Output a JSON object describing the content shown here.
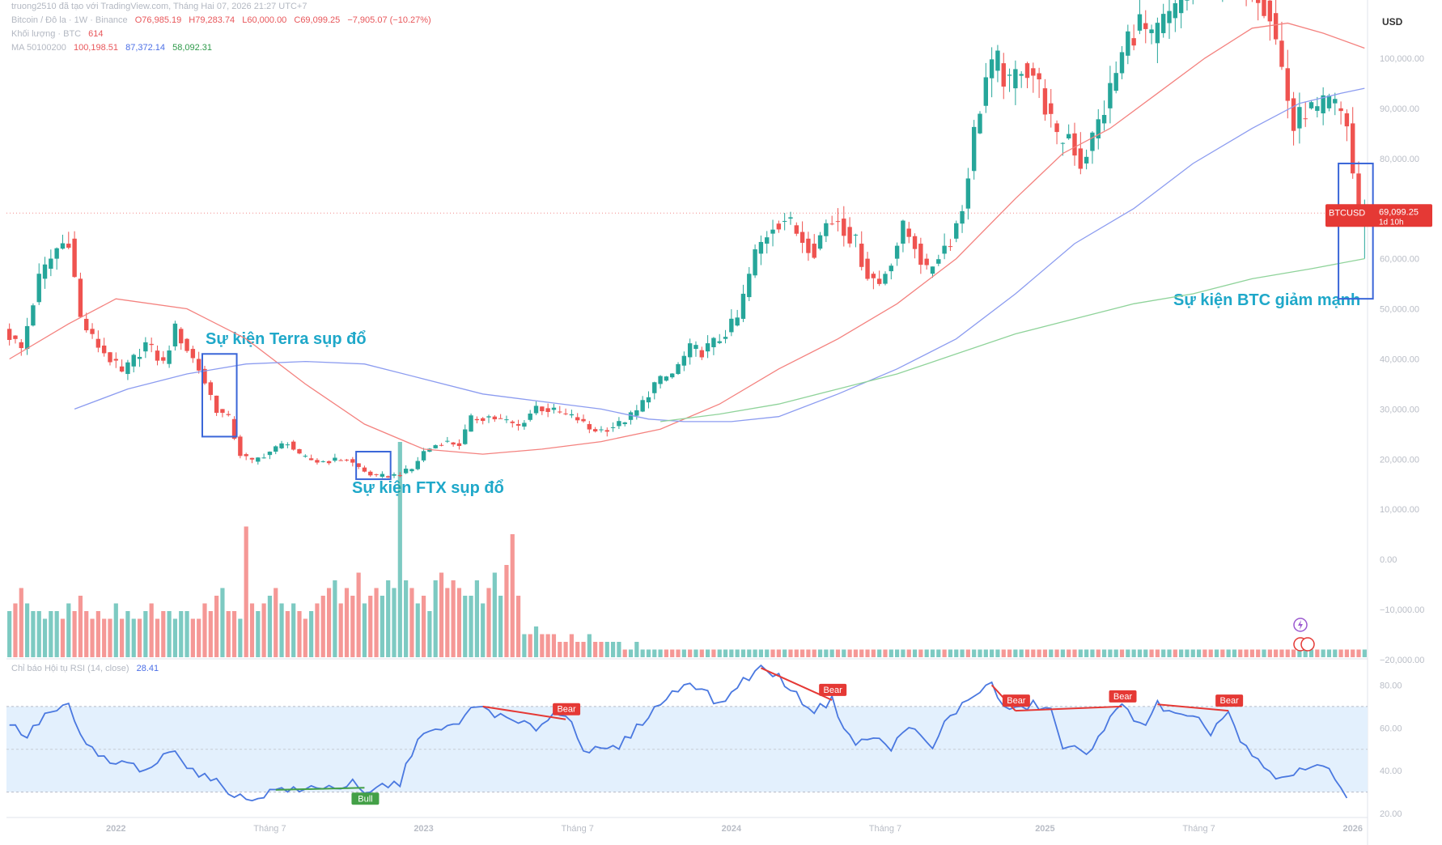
{
  "header": {
    "watermark": "truong2510 đã tạo với TradingView.com, Tháng Hai 07, 2026 21:27 UTC+7",
    "symbol": "Bitcoin / Đô la · 1W · Binance",
    "open": "O76,985.19",
    "high": "H79,283.74",
    "low": "L60,000.00",
    "close": "C69,099.25",
    "change": "−7,905.07 (−10.27%)",
    "volume_label": "Khối lượng · BTC",
    "volume_value": "614",
    "ma_label": "MA 50100200",
    "ma50": "100,198.51",
    "ma100": "87,372.14",
    "ma200": "58,092.31",
    "rsi_label": "Chỉ báo Hội tụ RSI (14, close)",
    "rsi_value": "28.41"
  },
  "currency": "USD",
  "price_tag": {
    "symbol": "BTCUSD",
    "price": "69,099.25",
    "countdown": "1d 10h"
  },
  "annotations": {
    "terra": "Sự kiện Terra sụp đổ",
    "ftx": "Sự kiện FTX sụp đổ",
    "btc_drop": "Sự kiện BTC giảm mạnh"
  },
  "colors": {
    "up": "#26a69a",
    "down": "#ef5350",
    "ma50": "#f4827f",
    "ma100": "#8c9cf0",
    "ma200": "#8fd39a",
    "rsi": "#4a78e0",
    "rsi_band": "#e3f0fd",
    "box": "#3a66d8",
    "annotation": "#1fa8c9",
    "bear_tag": "#e53935",
    "bull_tag": "#43a047"
  },
  "chart_data": {
    "type": "candlestick",
    "price_axis": {
      "min": -20000,
      "max": 110000,
      "ticks": [
        "100,000.00",
        "90,000.00",
        "80,000.00",
        "70,000.00",
        "60,000.00",
        "50,000.00",
        "40,000.00",
        "30,000.00",
        "20,000.00",
        "10,000.00",
        "0.00",
        "−10,000.00",
        "−20,000.00"
      ],
      "tick_values": [
        100000,
        90000,
        80000,
        70000,
        60000,
        50000,
        40000,
        30000,
        20000,
        10000,
        0,
        -10000,
        -20000
      ]
    },
    "rsi_axis": {
      "min": 20,
      "max": 90,
      "ticks": [
        "80.00",
        "60.00",
        "40.00",
        "20.00"
      ],
      "tick_values": [
        80,
        60,
        40,
        20
      ],
      "band": [
        30,
        70
      ],
      "midline": 50
    },
    "time_axis": {
      "labels": [
        "2022",
        "Tháng 7",
        "2023",
        "Tháng 7",
        "2024",
        "Tháng 7",
        "2025",
        "Tháng 7",
        "2026"
      ],
      "weeks": [
        18,
        44,
        70,
        96,
        122,
        148,
        175,
        201,
        227
      ]
    },
    "price_path": [
      [
        0,
        46000
      ],
      [
        3,
        42000
      ],
      [
        6,
        56000
      ],
      [
        9,
        62000
      ],
      [
        11,
        64000
      ],
      [
        13,
        48000
      ],
      [
        15,
        44000
      ],
      [
        18,
        40000
      ],
      [
        20,
        37000
      ],
      [
        24,
        43000
      ],
      [
        27,
        39000
      ],
      [
        29,
        46000
      ],
      [
        31,
        42000
      ],
      [
        33,
        38000
      ],
      [
        36,
        30000
      ],
      [
        38,
        28000
      ],
      [
        40,
        21000
      ],
      [
        42,
        19500
      ],
      [
        45,
        21500
      ],
      [
        48,
        23500
      ],
      [
        50,
        20500
      ],
      [
        53,
        19500
      ],
      [
        56,
        19800
      ],
      [
        58,
        20000
      ],
      [
        61,
        17500
      ],
      [
        63,
        16500
      ],
      [
        66,
        16800
      ],
      [
        69,
        18000
      ],
      [
        71,
        21500
      ],
      [
        74,
        23500
      ],
      [
        77,
        23000
      ],
      [
        79,
        28000
      ],
      [
        82,
        28500
      ],
      [
        85,
        27500
      ],
      [
        87,
        26500
      ],
      [
        90,
        30500
      ],
      [
        93,
        29500
      ],
      [
        97,
        28000
      ],
      [
        99,
        26000
      ],
      [
        101,
        25800
      ],
      [
        104,
        27000
      ],
      [
        107,
        29500
      ],
      [
        110,
        35000
      ],
      [
        113,
        37000
      ],
      [
        116,
        42000
      ],
      [
        118,
        41500
      ],
      [
        121,
        44000
      ],
      [
        124,
        48000
      ],
      [
        127,
        61000
      ],
      [
        130,
        67000
      ],
      [
        132,
        68000
      ],
      [
        135,
        64000
      ],
      [
        137,
        62000
      ],
      [
        139,
        67000
      ],
      [
        141,
        68000
      ],
      [
        144,
        63000
      ],
      [
        146,
        57000
      ],
      [
        148,
        55000
      ],
      [
        150,
        60000
      ],
      [
        152,
        66000
      ],
      [
        154,
        63000
      ],
      [
        156,
        57000
      ],
      [
        158,
        61000
      ],
      [
        160,
        64000
      ],
      [
        162,
        70000
      ],
      [
        164,
        85000
      ],
      [
        166,
        96000
      ],
      [
        168,
        99000
      ],
      [
        170,
        94000
      ],
      [
        172,
        99000
      ],
      [
        174,
        97000
      ],
      [
        176,
        91000
      ],
      [
        178,
        83000
      ],
      [
        180,
        85000
      ],
      [
        182,
        79000
      ],
      [
        184,
        84000
      ],
      [
        186,
        90000
      ],
      [
        188,
        97000
      ],
      [
        190,
        104000
      ],
      [
        192,
        107000
      ],
      [
        194,
        103000
      ],
      [
        196,
        107000
      ],
      [
        198,
        109000
      ],
      [
        200,
        114000
      ],
      [
        202,
        117000
      ],
      [
        204,
        112000
      ],
      [
        206,
        118000
      ],
      [
        208,
        122000
      ],
      [
        210,
        117000
      ],
      [
        212,
        114000
      ],
      [
        214,
        109000
      ],
      [
        216,
        98000
      ],
      [
        218,
        86000
      ],
      [
        220,
        90000
      ],
      [
        222,
        89000
      ],
      [
        224,
        91000
      ],
      [
        226,
        89000
      ],
      [
        227,
        87000
      ],
      [
        228,
        77000
      ],
      [
        229,
        69099
      ]
    ],
    "ma_series": [
      {
        "name": "MA 50",
        "points": [
          [
            0,
            40000
          ],
          [
            10,
            47000
          ],
          [
            18,
            52000
          ],
          [
            30,
            50000
          ],
          [
            40,
            44000
          ],
          [
            50,
            35000
          ],
          [
            60,
            27000
          ],
          [
            70,
            22000
          ],
          [
            80,
            21000
          ],
          [
            90,
            22000
          ],
          [
            100,
            23500
          ],
          [
            110,
            26000
          ],
          [
            120,
            31000
          ],
          [
            130,
            38000
          ],
          [
            140,
            44000
          ],
          [
            150,
            51000
          ],
          [
            160,
            60000
          ],
          [
            170,
            72000
          ],
          [
            178,
            81000
          ],
          [
            186,
            86000
          ],
          [
            194,
            93000
          ],
          [
            202,
            100000
          ],
          [
            210,
            106000
          ],
          [
            216,
            107000
          ],
          [
            222,
            105000
          ],
          [
            229,
            102000
          ]
        ]
      },
      {
        "name": "MA 100",
        "points": [
          [
            11,
            30000
          ],
          [
            20,
            34000
          ],
          [
            30,
            37000
          ],
          [
            40,
            39000
          ],
          [
            50,
            39500
          ],
          [
            60,
            39000
          ],
          [
            70,
            36000
          ],
          [
            80,
            33000
          ],
          [
            90,
            31500
          ],
          [
            100,
            30000
          ],
          [
            108,
            28000
          ],
          [
            114,
            27500
          ],
          [
            122,
            27500
          ],
          [
            130,
            28500
          ],
          [
            140,
            33000
          ],
          [
            150,
            38000
          ],
          [
            160,
            44000
          ],
          [
            170,
            53000
          ],
          [
            180,
            63000
          ],
          [
            190,
            70000
          ],
          [
            200,
            79000
          ],
          [
            210,
            86000
          ],
          [
            218,
            91000
          ],
          [
            225,
            93000
          ],
          [
            229,
            94000
          ]
        ]
      },
      {
        "name": "MA 200",
        "points": [
          [
            110,
            27500
          ],
          [
            120,
            29000
          ],
          [
            130,
            31000
          ],
          [
            140,
            34000
          ],
          [
            150,
            37000
          ],
          [
            160,
            41000
          ],
          [
            170,
            45000
          ],
          [
            180,
            48000
          ],
          [
            190,
            51000
          ],
          [
            200,
            53000
          ],
          [
            210,
            56000
          ],
          [
            220,
            58000
          ],
          [
            229,
            60000
          ]
        ]
      }
    ],
    "volume_bars": [
      6,
      7,
      9,
      7,
      6,
      6,
      5,
      6,
      6,
      5,
      7,
      6,
      8,
      6,
      5,
      6,
      5,
      5,
      7,
      5,
      6,
      5,
      5,
      6,
      7,
      5,
      6,
      6,
      5,
      6,
      6,
      5,
      5,
      7,
      6,
      8,
      9,
      6,
      6,
      5,
      17,
      7,
      6,
      7,
      8,
      9,
      7,
      6,
      7,
      6,
      5,
      6,
      7,
      8,
      9,
      10,
      7,
      9,
      8,
      11,
      7,
      8,
      9,
      8,
      10,
      9,
      28,
      10,
      9,
      7,
      8,
      6,
      10,
      11,
      9,
      10,
      9,
      8,
      8,
      10,
      7,
      9,
      11,
      8,
      12,
      16,
      8,
      3,
      3,
      4,
      3,
      3,
      3,
      2,
      2,
      3,
      2,
      2,
      3,
      2,
      2,
      2,
      2,
      2,
      1,
      1,
      2,
      1,
      1,
      1,
      1,
      1,
      1,
      1,
      1,
      1,
      1,
      1,
      1,
      1,
      1,
      1,
      1,
      1,
      1,
      1,
      1,
      1,
      1,
      1,
      1,
      1,
      1,
      1,
      1,
      1,
      1,
      1,
      1,
      1,
      1,
      1,
      1,
      1,
      1,
      1,
      1,
      1,
      1,
      1,
      1,
      1,
      1,
      1,
      1,
      1,
      1,
      1,
      1,
      1,
      1,
      1,
      1,
      1,
      1,
      1,
      1,
      1,
      1,
      1,
      1,
      1,
      1,
      1,
      1,
      1,
      1,
      1,
      1,
      1,
      1,
      1,
      1,
      1,
      1,
      1,
      1,
      1,
      1,
      1,
      1,
      1,
      1,
      1,
      1,
      1,
      1,
      1,
      1,
      1,
      1,
      1,
      1,
      1,
      1,
      1,
      1,
      1,
      1,
      1,
      1,
      1,
      1,
      1,
      1,
      1,
      1,
      1,
      1,
      1,
      1,
      1,
      1,
      1,
      1,
      1,
      1,
      1,
      1,
      1
    ],
    "rsi_path": [
      [
        0,
        62
      ],
      [
        3,
        56
      ],
      [
        6,
        66
      ],
      [
        10,
        70
      ],
      [
        12,
        56
      ],
      [
        15,
        47
      ],
      [
        18,
        42
      ],
      [
        20,
        45
      ],
      [
        22,
        38
      ],
      [
        25,
        44
      ],
      [
        28,
        51
      ],
      [
        30,
        42
      ],
      [
        33,
        37
      ],
      [
        36,
        33
      ],
      [
        38,
        29
      ],
      [
        40,
        26
      ],
      [
        43,
        29
      ],
      [
        46,
        32
      ],
      [
        49,
        30
      ],
      [
        52,
        33
      ],
      [
        55,
        32
      ],
      [
        58,
        34
      ],
      [
        60,
        28
      ],
      [
        63,
        33
      ],
      [
        66,
        34
      ],
      [
        69,
        56
      ],
      [
        72,
        58
      ],
      [
        75,
        61
      ],
      [
        78,
        68
      ],
      [
        80,
        70
      ],
      [
        83,
        65
      ],
      [
        86,
        62
      ],
      [
        89,
        60
      ],
      [
        92,
        67
      ],
      [
        95,
        64
      ],
      [
        97,
        50
      ],
      [
        100,
        49
      ],
      [
        103,
        51
      ],
      [
        106,
        60
      ],
      [
        109,
        69
      ],
      [
        112,
        76
      ],
      [
        115,
        82
      ],
      [
        118,
        76
      ],
      [
        120,
        70
      ],
      [
        123,
        80
      ],
      [
        127,
        88
      ],
      [
        130,
        84
      ],
      [
        133,
        75
      ],
      [
        136,
        68
      ],
      [
        139,
        73
      ],
      [
        141,
        61
      ],
      [
        143,
        52
      ],
      [
        146,
        56
      ],
      [
        149,
        50
      ],
      [
        152,
        62
      ],
      [
        154,
        55
      ],
      [
        156,
        50
      ],
      [
        158,
        62
      ],
      [
        160,
        68
      ],
      [
        162,
        73
      ],
      [
        164,
        78
      ],
      [
        166,
        80
      ],
      [
        168,
        70
      ],
      [
        170,
        68
      ],
      [
        173,
        71
      ],
      [
        176,
        68
      ],
      [
        178,
        51
      ],
      [
        180,
        50
      ],
      [
        182,
        47
      ],
      [
        184,
        57
      ],
      [
        186,
        64
      ],
      [
        188,
        70
      ],
      [
        190,
        65
      ],
      [
        192,
        62
      ],
      [
        194,
        71
      ],
      [
        196,
        67
      ],
      [
        198,
        65
      ],
      [
        201,
        63
      ],
      [
        203,
        58
      ],
      [
        206,
        68
      ],
      [
        208,
        53
      ],
      [
        211,
        44
      ],
      [
        213,
        38
      ],
      [
        215,
        36
      ],
      [
        217,
        38
      ],
      [
        219,
        42
      ],
      [
        221,
        43
      ],
      [
        223,
        39
      ],
      [
        226,
        29
      ]
    ],
    "divergences": [
      {
        "type": "Bear",
        "from": [
          80,
          70
        ],
        "to": [
          94,
          64
        ]
      },
      {
        "type": "Bear",
        "from": [
          127,
          88
        ],
        "to": [
          139,
          73
        ]
      },
      {
        "type": "Bear",
        "from": [
          166,
          80
        ],
        "to": [
          170,
          68
        ]
      },
      {
        "type": "Bear",
        "from": [
          170,
          68
        ],
        "to": [
          188,
          70
        ]
      },
      {
        "type": "Bear",
        "from": [
          194,
          71
        ],
        "to": [
          206,
          68
        ]
      },
      {
        "type": "Bull",
        "from": [
          45,
          31
        ],
        "to": [
          60,
          32
        ]
      }
    ],
    "events": [
      {
        "name": "terra",
        "week_from": 33,
        "week_to": 38,
        "price_high": 41000,
        "price_low": 24500
      },
      {
        "name": "ftx",
        "week_from": 59,
        "week_to": 64,
        "price_high": 21500,
        "price_low": 16000
      },
      {
        "name": "btc_drop",
        "week_from": 225,
        "week_to": 230,
        "price_high": 79000,
        "price_low": 52000
      }
    ],
    "last_price": 69099.25
  }
}
